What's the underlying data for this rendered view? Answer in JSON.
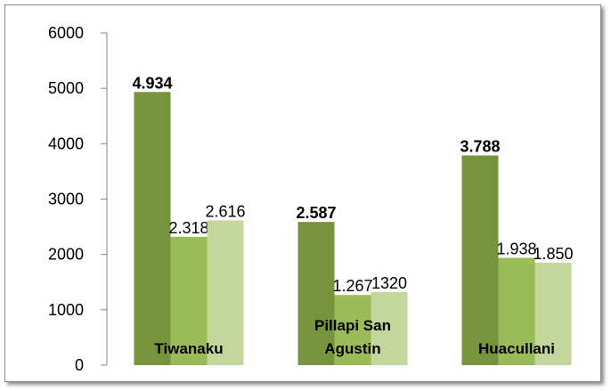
{
  "chart_data": {
    "type": "bar",
    "categories": [
      "Tiwanaku",
      "Pillapi San Agustin",
      "Huacullani"
    ],
    "series": [
      {
        "color": "#77933c",
        "values": [
          4934,
          2587,
          3788
        ],
        "value_labels": [
          "4.934",
          "2.587",
          "3.788"
        ],
        "bold": true
      },
      {
        "color": "#9bbb59",
        "values": [
          2318,
          1267,
          1938
        ],
        "value_labels": [
          "2.318",
          "1.267",
          "1.938"
        ]
      },
      {
        "color": "#c3d69b",
        "values": [
          2616,
          1320,
          1850
        ],
        "value_labels": [
          "2.616",
          "1320",
          "1.850"
        ]
      }
    ],
    "ylim": [
      0,
      6000
    ],
    "yticks": [
      0,
      1000,
      2000,
      3000,
      4000,
      5000,
      6000
    ],
    "grid": false
  }
}
